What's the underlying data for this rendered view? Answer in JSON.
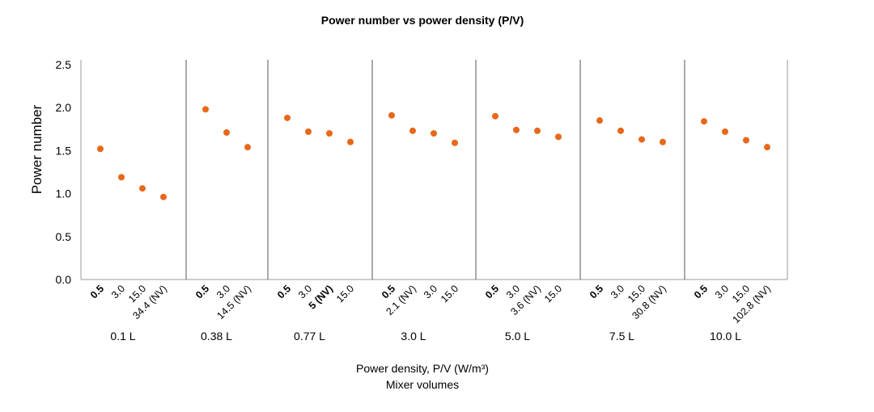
{
  "chart_data": {
    "type": "scatter",
    "title": "Power number vs power density (P/V)",
    "ylabel": "Power number",
    "xlabel": "Power density, P/V (W/m³)",
    "xlabel2": "Mixer volumes",
    "ylim": [
      0,
      2.5
    ],
    "yticks": [
      "0.0",
      "0.5",
      "1.0",
      "1.5",
      "2.0",
      "2.5"
    ],
    "grid": false,
    "marker_color": "#e8681a",
    "groups": [
      {
        "label": "0.1 L",
        "x": [
          "0.5",
          "3.0",
          "15.0",
          "34.4 (NV)"
        ],
        "bold": [
          true,
          false,
          false,
          false
        ],
        "values": [
          1.52,
          1.19,
          1.06,
          0.96
        ]
      },
      {
        "label": "0.38 L",
        "x": [
          "0.5",
          "3.0",
          "14.5 (NV)"
        ],
        "bold": [
          true,
          false,
          false
        ],
        "values": [
          1.98,
          1.71,
          1.54
        ]
      },
      {
        "label": "0.77 L",
        "x": [
          "0.5",
          "3.0",
          "5 (NV)",
          "15.0"
        ],
        "bold": [
          true,
          false,
          true,
          false
        ],
        "values": [
          1.88,
          1.72,
          1.7,
          1.6
        ]
      },
      {
        "label": "3.0 L",
        "x": [
          "0.5",
          "2.1 (NV)",
          "3.0",
          "15.0"
        ],
        "bold": [
          true,
          false,
          false,
          false
        ],
        "values": [
          1.91,
          1.73,
          1.7,
          1.59
        ]
      },
      {
        "label": "5.0 L",
        "x": [
          "0.5",
          "3.0",
          "3.6 (NV)",
          "15.0"
        ],
        "bold": [
          true,
          false,
          false,
          false
        ],
        "values": [
          1.9,
          1.74,
          1.73,
          1.66
        ]
      },
      {
        "label": "7.5 L",
        "x": [
          "0.5",
          "3.0",
          "15.0",
          "30.8 (NV)"
        ],
        "bold": [
          true,
          false,
          false,
          false
        ],
        "values": [
          1.85,
          1.73,
          1.63,
          1.6
        ]
      },
      {
        "label": "10.0 L",
        "x": [
          "0.5",
          "3.0",
          "15.0",
          "102.8 (NV)"
        ],
        "bold": [
          true,
          false,
          false,
          false
        ],
        "values": [
          1.84,
          1.72,
          1.62,
          1.54
        ]
      }
    ]
  }
}
